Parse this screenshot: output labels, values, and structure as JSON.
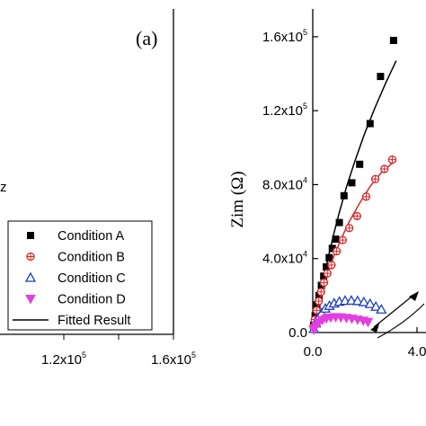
{
  "chart_data": [
    {
      "type": "scatter",
      "panel_label": "(a)",
      "x_ticks": [
        {
          "base": "1.2x10",
          "exp": "5"
        },
        {
          "base": "1.6x10",
          "exp": "5"
        }
      ],
      "partial_axis_label": "z",
      "legend": {
        "placement": "bottom-right",
        "entries": [
          {
            "label": "Condition A",
            "marker": "square",
            "color": "#000000"
          },
          {
            "label": "Condition B",
            "marker": "circle-cross",
            "color": "#d62728"
          },
          {
            "label": "Condition C",
            "marker": "triangle-up",
            "color": "#1f3fbf"
          },
          {
            "label": "Condition D",
            "marker": "triangle-down",
            "color": "#e23fe0"
          },
          {
            "label": "Fitted Result",
            "marker": "line",
            "color": "#000000"
          }
        ]
      }
    },
    {
      "type": "scatter",
      "ylabel": "Zim (Ω)",
      "ylim": [
        0,
        175000
      ],
      "xlim": [
        0,
        60000
      ],
      "y_ticks": [
        {
          "value": 0,
          "base": "0.0",
          "exp": ""
        },
        {
          "value": 40000,
          "base": "4.0x10",
          "exp": "4"
        },
        {
          "value": 80000,
          "base": "8.0x10",
          "exp": "4"
        },
        {
          "value": 120000,
          "base": "1.2x10",
          "exp": "5"
        },
        {
          "value": 160000,
          "base": "1.6x10",
          "exp": "5"
        }
      ],
      "x_ticks": [
        {
          "value": 0,
          "base": "0.0",
          "exp": ""
        },
        {
          "value": 40000,
          "base": "4.0",
          "exp": ""
        }
      ],
      "series": [
        {
          "name": "Condition A",
          "marker": "square",
          "color": "#000000",
          "x": [
            300,
            900,
            1600,
            2400,
            3300,
            4200,
            5200,
            6300,
            7500,
            8800,
            10200,
            12000,
            15000,
            18000,
            22000,
            26000,
            31000
          ],
          "y": [
            4000,
            9000,
            15000,
            20000,
            25500,
            30500,
            35500,
            40500,
            45500,
            50500,
            59500,
            74000,
            81000,
            91000,
            113000,
            138500,
            158000
          ],
          "fit_x": [
            0,
            2000,
            4000,
            6000,
            8000,
            10000,
            13000,
            16000,
            20000,
            24000,
            28000,
            32000
          ],
          "fit_y": [
            0,
            14000,
            28000,
            41000,
            53000,
            64000,
            79000,
            92000,
            108000,
            122000,
            135000,
            147000
          ]
        },
        {
          "name": "Condition B",
          "marker": "circle-cross",
          "color": "#d62728",
          "x": [
            300,
            800,
            1500,
            2300,
            3200,
            4300,
            5600,
            7200,
            9200,
            11500,
            14000,
            17000,
            20500,
            24000,
            27500,
            30500
          ],
          "y": [
            3000,
            7000,
            12000,
            17000,
            22000,
            27000,
            32000,
            36500,
            44000,
            50000,
            56500,
            63000,
            73500,
            83000,
            88500,
            93500
          ],
          "fit_x": [
            0,
            2500,
            5000,
            8000,
            11000,
            14000,
            18000,
            22000,
            26000,
            30000,
            32000
          ],
          "fit_y": [
            0,
            16000,
            29000,
            41000,
            51000,
            60000,
            70000,
            79000,
            86000,
            91000,
            93000
          ]
        },
        {
          "name": "Condition C",
          "marker": "triangle-up",
          "color": "#1f3fbf",
          "x": [
            400,
            1200,
            2200,
            3400,
            4800,
            6400,
            8200,
            10200,
            12400,
            14800,
            17200,
            19600,
            22000,
            24200,
            26300
          ],
          "y": [
            2000,
            5000,
            8000,
            10500,
            13000,
            14500,
            15800,
            16700,
            17200,
            17300,
            17100,
            16500,
            15500,
            14000,
            12500
          ],
          "fit_x": [
            0,
            3000,
            6000,
            9000,
            12000,
            15000,
            18000,
            21000,
            24000,
            27000
          ],
          "fit_y": [
            0,
            9000,
            13500,
            16000,
            17200,
            17400,
            16800,
            15500,
            13500,
            11000
          ]
        },
        {
          "name": "Condition D",
          "marker": "triangle-down",
          "color": "#e23fe0",
          "x": [
            400,
            1300,
            2400,
            3700,
            5200,
            6900,
            8800,
            10800,
            12900,
            15000,
            17200,
            19400,
            21200
          ],
          "y": [
            1500,
            3800,
            5500,
            6800,
            7600,
            8100,
            8300,
            8200,
            7900,
            7500,
            7000,
            6400,
            5700
          ],
          "fit_x": [
            0,
            3000,
            6000,
            9000,
            12000,
            15000,
            18000,
            21000
          ],
          "fit_y": [
            0,
            6000,
            7800,
            8300,
            8100,
            7500,
            6600,
            5600
          ]
        }
      ]
    }
  ]
}
